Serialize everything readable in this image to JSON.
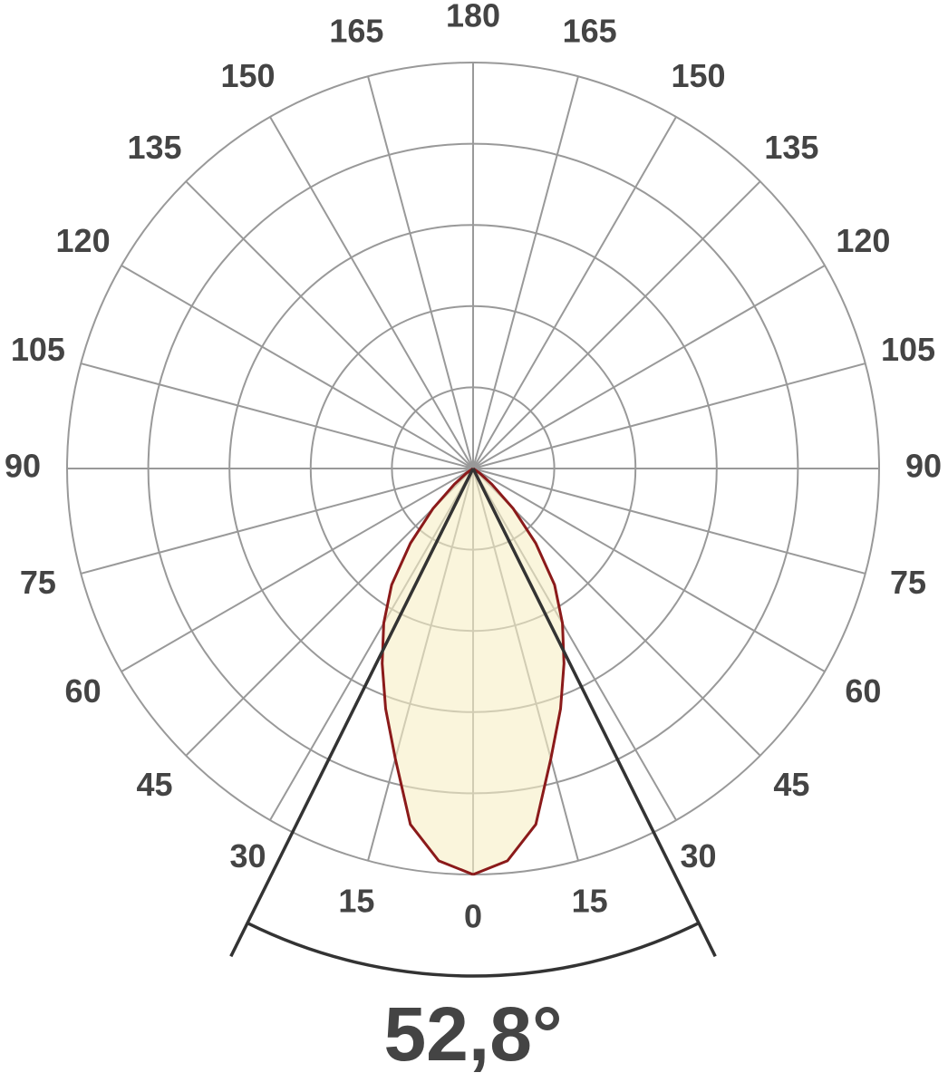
{
  "chart_data": {
    "type": "polar",
    "angle_ticks": [
      0,
      15,
      30,
      45,
      60,
      75,
      90,
      105,
      120,
      135,
      150,
      165,
      180
    ],
    "rlim": [
      0,
      5
    ],
    "rgrid": [
      1,
      2,
      3,
      4,
      5
    ],
    "angles": [
      0,
      5,
      10,
      15,
      20,
      25,
      30,
      35,
      40,
      45,
      50,
      55,
      60,
      65,
      70,
      75,
      80,
      85,
      90
    ],
    "values": [
      5.0,
      4.85,
      4.45,
      3.7,
      3.15,
      2.65,
      2.2,
      1.75,
      1.2,
      0.7,
      0.3,
      0.1,
      0,
      0,
      0,
      0,
      0,
      0,
      0
    ],
    "color": "#8b1a1a",
    "fill": "#f7efc4",
    "beam_angle": {
      "value": 52.8,
      "label": "52,8°"
    }
  }
}
